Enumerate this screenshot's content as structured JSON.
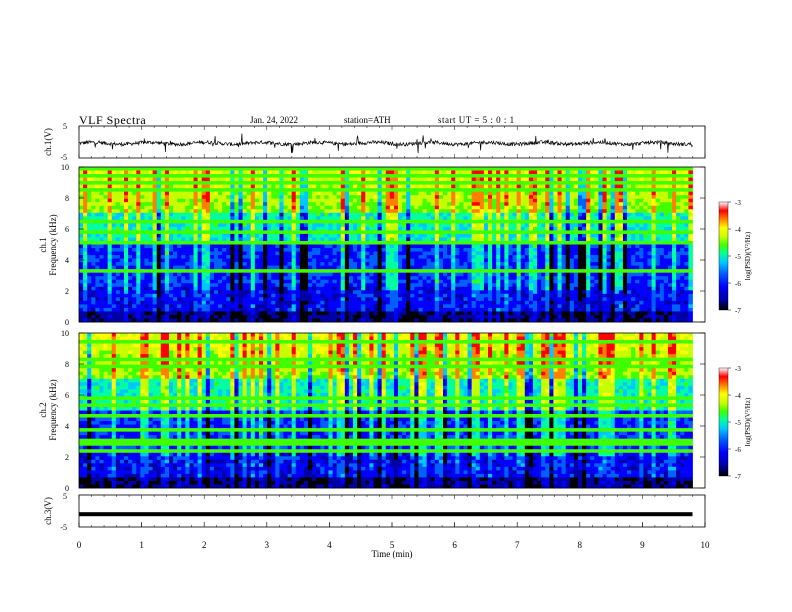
{
  "header": {
    "title": "VLF Spectra",
    "date": "Jan. 24, 2022",
    "station": "station=ATH",
    "start": "start UT =  5 : 0 : 1"
  },
  "colors": {
    "colormap": [
      "#000000",
      "#0000a8",
      "#0000ff",
      "#0060ff",
      "#00c8ff",
      "#00ffa0",
      "#40ff00",
      "#c8ff00",
      "#ffff00",
      "#ff8000",
      "#ff0000",
      "#ffffff"
    ],
    "trace": "#000000"
  },
  "chart_data": [
    {
      "type": "line",
      "name": "ch1-waveform",
      "ylabel": "ch.1(V)",
      "ylim": [
        -5,
        5
      ],
      "yticks": [
        "5",
        "-5"
      ],
      "xlim": [
        0,
        10
      ],
      "baseline": -0.4
    },
    {
      "type": "heatmap",
      "name": "ch1-spectrogram",
      "ylabel": "ch.1\nFrequency (kHz)",
      "ylim": [
        0,
        10
      ],
      "yticks": [
        "10",
        "8",
        "6",
        "4",
        "2",
        "0"
      ],
      "xlim": [
        0,
        9.8
      ],
      "colorbar": {
        "label": "log(PSD)(V²/Hz)",
        "range": [
          -7,
          -3
        ],
        "ticks": [
          "-3",
          "-4",
          "-5",
          "-6",
          "-7"
        ]
      }
    },
    {
      "type": "heatmap",
      "name": "ch2-spectrogram",
      "ylabel": "ch.2\nFrequency (kHz)",
      "ylim": [
        0,
        10
      ],
      "yticks": [
        "10",
        "8",
        "6",
        "4",
        "2",
        "0"
      ],
      "xlim": [
        0,
        9.8
      ],
      "colorbar": {
        "label": "log(PSD)(V²/Hz)",
        "range": [
          -7,
          -3
        ],
        "ticks": [
          "-3",
          "-4",
          "-5",
          "-6",
          "-7"
        ]
      }
    },
    {
      "type": "line",
      "name": "ch3-waveform",
      "ylabel": "ch.3(V)",
      "ylim": [
        -5,
        5
      ],
      "yticks": [
        "5",
        "-5"
      ],
      "xlim": [
        0,
        10
      ],
      "baseline": -1.0,
      "xlabel": "Time (min)",
      "xticks": [
        "0",
        "1",
        "2",
        "3",
        "4",
        "5",
        "6",
        "7",
        "8",
        "9",
        "10"
      ]
    }
  ]
}
